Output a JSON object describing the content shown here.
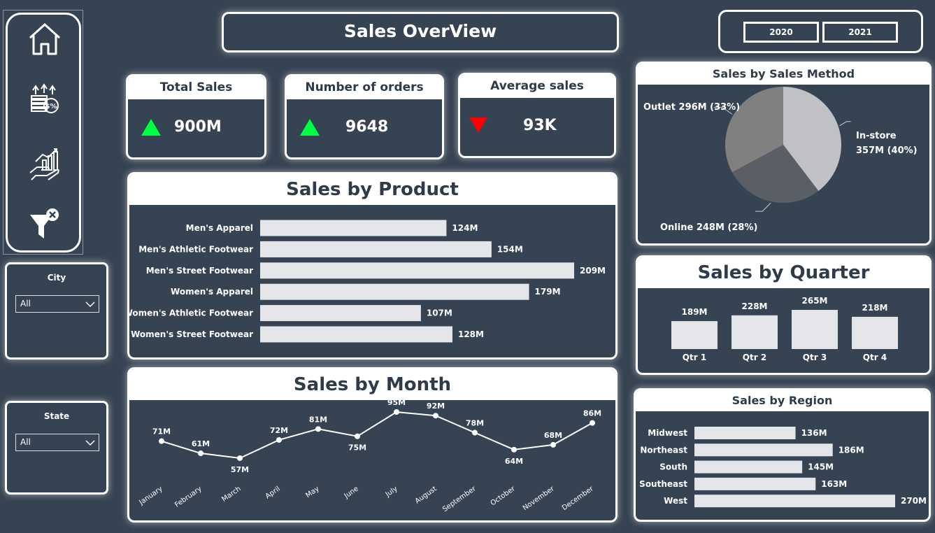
{
  "title": "Sales OverView",
  "years": [
    "2020",
    "2021"
  ],
  "nav": [
    {
      "icon": "home-icon"
    },
    {
      "icon": "money-growth-icon"
    },
    {
      "icon": "sales-chart-hand-icon"
    },
    {
      "icon": "clear-filter-icon"
    }
  ],
  "slicers": [
    {
      "title": "City",
      "value": "All"
    },
    {
      "title": "State",
      "value": "All"
    }
  ],
  "kpis": [
    {
      "title": "Total Sales",
      "value": "900M",
      "trend": "up"
    },
    {
      "title": "Number of orders",
      "value": "9648",
      "trend": "up"
    },
    {
      "title": "Average sales",
      "value": "93K",
      "trend": "down"
    }
  ],
  "colors": {
    "background": "#364352",
    "bar": "#e4e5e9",
    "up": "#00ff44",
    "down": "#ff0000"
  },
  "chart_data": [
    {
      "id": "product",
      "type": "bar",
      "orientation": "horizontal",
      "title": "Sales by Product",
      "categories": [
        "Men's Apparel",
        "Men's Athletic Footwear",
        "Men's Street Footwear",
        "Women's Apparel",
        "Women's Athletic Footwear",
        "Women's Street Footwear"
      ],
      "values": [
        124,
        154,
        209,
        179,
        107,
        128
      ],
      "labels": [
        "124M",
        "154M",
        "209M",
        "179M",
        "107M",
        "128M"
      ]
    },
    {
      "id": "month",
      "type": "line",
      "title": "Sales by Month",
      "categories": [
        "January",
        "February",
        "March",
        "April",
        "May",
        "June",
        "July",
        "August",
        "September",
        "October",
        "November",
        "December"
      ],
      "values": [
        71,
        61,
        57,
        72,
        81,
        75,
        95,
        92,
        78,
        64,
        68,
        86
      ],
      "labels": [
        "71M",
        "61M",
        "57M",
        "72M",
        "81M",
        "75M",
        "95M",
        "92M",
        "78M",
        "64M",
        "68M",
        "86M"
      ]
    },
    {
      "id": "method",
      "type": "pie",
      "title": "Sales by Sales Method",
      "slices": [
        {
          "name": "In-store",
          "value": 357,
          "label": "357M (40%)",
          "color": "#bfc1c4"
        },
        {
          "name": "Online",
          "value": 248,
          "label": "248M (28%)",
          "color": "#5a5f66"
        },
        {
          "name": "Outlet",
          "value": 296,
          "label": "296M (33%)",
          "color": "#808080"
        }
      ]
    },
    {
      "id": "quarter",
      "type": "bar",
      "orientation": "vertical",
      "title": "Sales by Quarter",
      "categories": [
        "Qtr 1",
        "Qtr 2",
        "Qtr 3",
        "Qtr 4"
      ],
      "values": [
        189,
        228,
        265,
        218
      ],
      "labels": [
        "189M",
        "228M",
        "265M",
        "218M"
      ]
    },
    {
      "id": "region",
      "type": "bar",
      "orientation": "horizontal",
      "title": "Sales by Region",
      "categories": [
        "Midwest",
        "Northeast",
        "South",
        "Southeast",
        "West"
      ],
      "values": [
        136,
        186,
        145,
        163,
        270
      ],
      "labels": [
        "136M",
        "186M",
        "145M",
        "163M",
        "270M"
      ]
    }
  ]
}
